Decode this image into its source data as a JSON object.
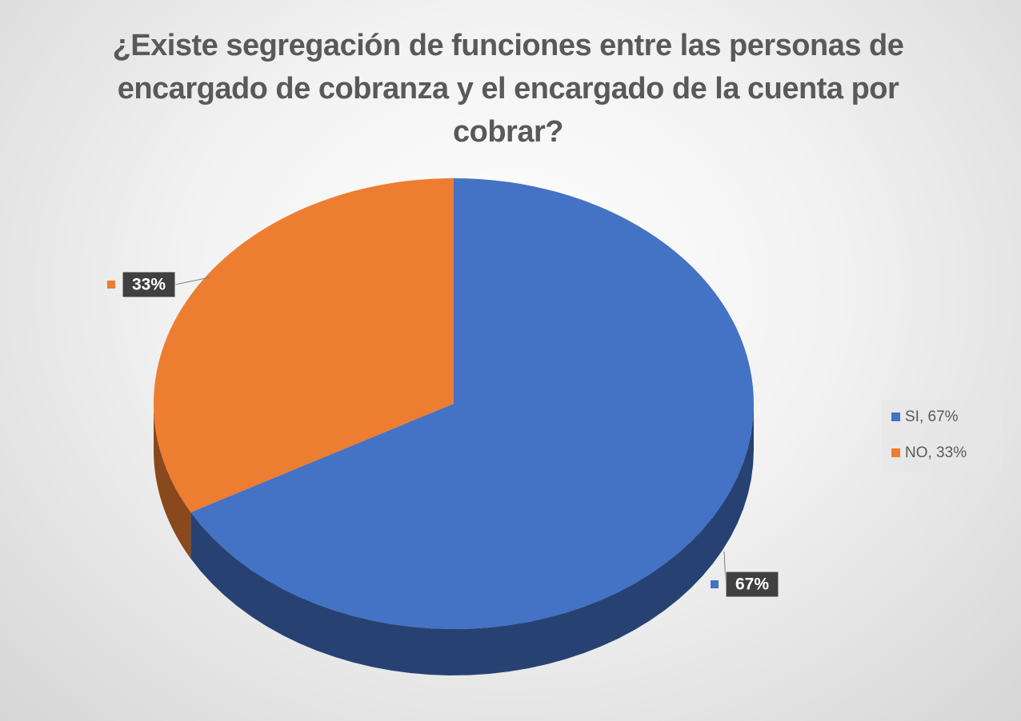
{
  "chart_data": {
    "type": "pie",
    "title": "¿Existe segregación de funciones entre las personas de encargado de cobranza y el encargado de la cuenta por cobrar?",
    "categories": [
      "SI, 67%",
      "NO, 33%"
    ],
    "values": [
      67,
      33
    ],
    "value_labels": [
      "67%",
      "33%"
    ],
    "colors": [
      "#4472c4",
      "#ed7d31"
    ],
    "legend": "right"
  }
}
